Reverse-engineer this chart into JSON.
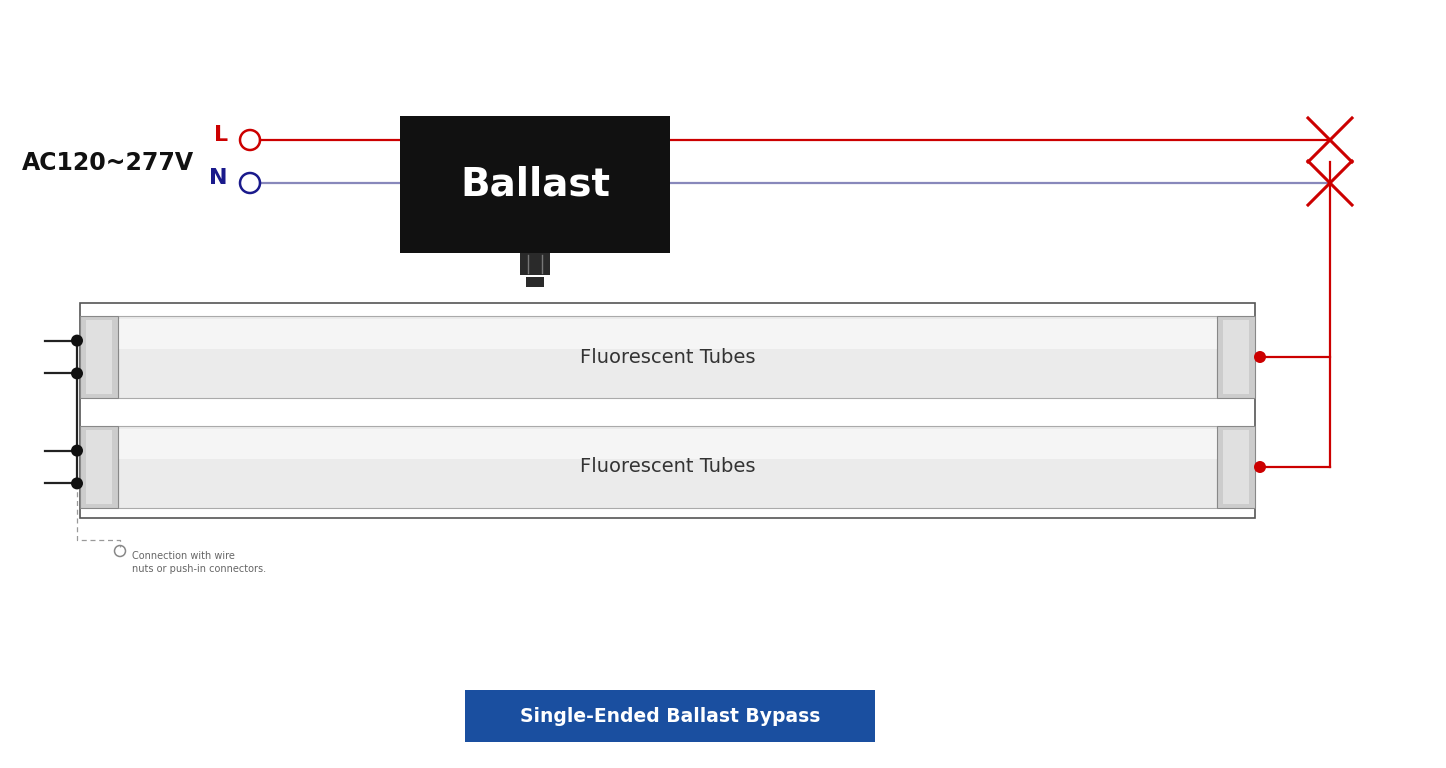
{
  "bg_color": "#ffffff",
  "title": "Single-Ended Ballast Bypass",
  "title_bg": "#1a4fa0",
  "title_text_color": "#ffffff",
  "ac_label": "AC120~277V",
  "L_label": "L",
  "N_label": "N",
  "L_color": "#cc0000",
  "N_color": "#1a1a8c",
  "ballast_bg": "#111111",
  "ballast_text": "Ballast",
  "ballast_text_color": "#ffffff",
  "tube_label": "Fluorescent Tubes",
  "tube_label_color": "#333333",
  "wire_red": "#cc0000",
  "wire_blue": "#8888bb",
  "wire_black": "#222222",
  "X_color": "#cc0000",
  "dot_black": "#111111",
  "dot_red": "#cc0000",
  "fixture_outline": "#555555",
  "connector_note": "Connection with wire\nnuts or push-in connectors.",
  "note_color": "#666666",
  "cap_face": "#cccccc",
  "cap_inner": "#e0e0e0",
  "tube_face": "#ebebeb",
  "tube_highlight": "#f5f5f5"
}
